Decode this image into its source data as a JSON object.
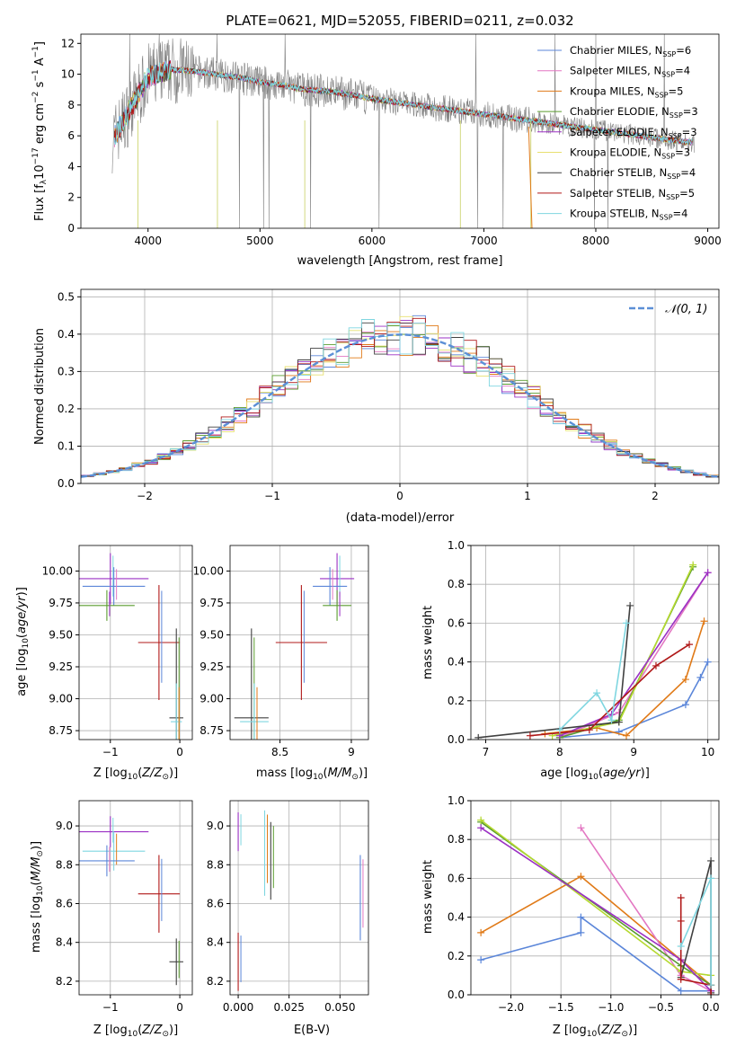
{
  "chart_data": [
    {
      "type": "line",
      "title": "PLATE=0621, MJD=52055, FIBERID=0211, z=0.032",
      "xlabel": "wavelength [Angstrom, rest frame]",
      "ylabel": "Flux [f_λ 10^-17 erg cm^-2 s^-1 A^-1]",
      "xlim": [
        3400,
        9100
      ],
      "ylim": [
        0,
        12.6
      ],
      "xticks": [
        4000,
        5000,
        6000,
        7000,
        8000,
        9000
      ],
      "yticks": [
        0,
        2,
        4,
        6,
        8,
        10,
        12
      ],
      "grid": false,
      "legend_position": "top-right",
      "legend": [
        "Chabrier MILES, N_SSP=6",
        "Salpeter MILES, N_SSP=4",
        "Kroupa MILES, N_SSP=5",
        "Chabrier ELODIE, N_SSP=3",
        "Salpeter ELODIE, N_SSP=3",
        "Kroupa ELODIE, N_SSP=3",
        "Chabrier STELIB, N_SSP=4",
        "Salpeter STELIB, N_SSP=5",
        "Kroupa STELIB, N_SSP=4"
      ],
      "data_trend": {
        "x": [
          3700,
          3800,
          3900,
          4000,
          4200,
          4400,
          4600,
          4800,
          5000,
          5200,
          5400,
          5600,
          5800,
          6000,
          6200,
          6400,
          6600,
          6800,
          7000,
          7200,
          7400,
          7600,
          7800,
          8000,
          8200,
          8400,
          8600,
          8800
        ],
        "y": [
          6.0,
          7.2,
          8.5,
          9.8,
          10.3,
          10.2,
          10.0,
          9.8,
          9.5,
          9.3,
          9.0,
          8.9,
          8.7,
          8.4,
          8.2,
          8.0,
          7.8,
          7.6,
          7.4,
          7.2,
          7.0,
          6.8,
          6.6,
          6.4,
          6.2,
          6.0,
          5.8,
          5.6
        ]
      }
    },
    {
      "type": "line",
      "xlabel": "(data-model)/error",
      "ylabel": "Normed distribution",
      "xlim": [
        -2.5,
        2.5
      ],
      "ylim": [
        0,
        0.52
      ],
      "xticks": [
        -2,
        -1,
        0,
        1,
        2
      ],
      "yticks": [
        0.0,
        0.1,
        0.2,
        0.3,
        0.4,
        0.5
      ],
      "grid": true,
      "legend": [
        "𝒩(0, 1)"
      ],
      "legend_position": "top-right"
    },
    {
      "type": "scatter",
      "xlabel": "Z [log10(Z/Z⊙)]",
      "ylabel": "age  [log10(age/yr)]",
      "xlim": [
        -1.45,
        0.18
      ],
      "ylim": [
        8.68,
        10.2
      ],
      "xticks": [
        -1,
        0
      ],
      "yticks": [
        8.75,
        9.0,
        9.25,
        9.5,
        9.75,
        10.0
      ],
      "grid": true,
      "points": [
        {
          "x": -1.0,
          "y": 9.94,
          "xerr": 0.55,
          "yerr": 0.2
        },
        {
          "x": -0.3,
          "y": 9.44,
          "xerr": 0.3,
          "yerr": 0.45
        },
        {
          "x": -0.05,
          "y": 8.85,
          "xerr": 0.1,
          "yerr": 0.7
        },
        {
          "x": -0.05,
          "y": 8.82,
          "xerr": 0.08,
          "yerr": 0.3
        },
        {
          "x": -0.95,
          "y": 9.88,
          "xerr": 0.45,
          "yerr": 0.15
        },
        {
          "x": -1.05,
          "y": 9.73,
          "xerr": 0.4,
          "yerr": 0.12
        }
      ]
    },
    {
      "type": "scatter",
      "xlabel": "mass [log10(M/M⊙)]",
      "ylabel": "",
      "xlim": [
        8.15,
        9.12
      ],
      "ylim": [
        8.68,
        10.2
      ],
      "xticks": [
        8.5,
        9.0
      ],
      "yticks": [
        8.75,
        9.0,
        9.25,
        9.5,
        9.75,
        10.0
      ],
      "grid": true,
      "points": [
        {
          "x": 8.9,
          "y": 9.94,
          "xerr": 0.12,
          "yerr": 0.2
        },
        {
          "x": 8.65,
          "y": 9.44,
          "xerr": 0.18,
          "yerr": 0.45
        },
        {
          "x": 8.3,
          "y": 8.85,
          "xerr": 0.12,
          "yerr": 0.7
        },
        {
          "x": 8.32,
          "y": 8.82,
          "xerr": 0.1,
          "yerr": 0.3
        },
        {
          "x": 8.85,
          "y": 9.88,
          "xerr": 0.12,
          "yerr": 0.15
        },
        {
          "x": 8.9,
          "y": 9.73,
          "xerr": 0.1,
          "yerr": 0.12
        }
      ]
    },
    {
      "type": "line",
      "xlabel": "age  [log10(age/yr)]",
      "ylabel": "mass weight",
      "xlim": [
        6.8,
        10.15
      ],
      "ylim": [
        0,
        1.0
      ],
      "xticks": [
        7,
        8,
        9,
        10
      ],
      "yticks": [
        0.0,
        0.2,
        0.4,
        0.6,
        0.8,
        1.0
      ],
      "grid": true,
      "series": [
        {
          "color": "#5b86d9",
          "x": [
            8.0,
            8.8,
            9.7,
            9.9,
            10.0
          ],
          "y": [
            0.01,
            0.04,
            0.18,
            0.32,
            0.4
          ]
        },
        {
          "color": "#e07a18",
          "x": [
            7.8,
            8.5,
            8.9,
            9.7,
            9.95
          ],
          "y": [
            0.03,
            0.06,
            0.02,
            0.31,
            0.61
          ]
        },
        {
          "color": "#e377c2",
          "x": [
            8.0,
            8.8,
            10.0
          ],
          "y": [
            0.01,
            0.14,
            0.86
          ]
        },
        {
          "color": "#5a9c2e",
          "x": [
            8.0,
            8.8,
            9.8
          ],
          "y": [
            0.01,
            0.1,
            0.89
          ]
        },
        {
          "color": "#b5d930",
          "x": [
            7.9,
            8.8,
            9.8
          ],
          "y": [
            0.02,
            0.09,
            0.9
          ]
        },
        {
          "color": "#9b30c4",
          "x": [
            8.0,
            8.7,
            10.0
          ],
          "y": [
            0.02,
            0.13,
            0.86
          ]
        },
        {
          "color": "#404040",
          "x": [
            6.9,
            8.8,
            8.95
          ],
          "y": [
            0.01,
            0.09,
            0.69
          ]
        },
        {
          "color": "#b01818",
          "x": [
            7.6,
            8.4,
            9.3,
            9.75
          ],
          "y": [
            0.02,
            0.05,
            0.38,
            0.49
          ]
        },
        {
          "color": "#7fd6e0",
          "x": [
            8.0,
            8.5,
            8.7,
            8.9
          ],
          "y": [
            0.05,
            0.24,
            0.1,
            0.6
          ]
        }
      ]
    },
    {
      "type": "scatter",
      "xlabel": "Z [log10(Z/Z⊙)]",
      "ylabel": "mass [log10(M/M⊙)]",
      "xlim": [
        -1.45,
        0.18
      ],
      "ylim": [
        8.13,
        9.13
      ],
      "xticks": [
        -1,
        0
      ],
      "yticks": [
        8.2,
        8.4,
        8.6,
        8.8,
        9.0
      ],
      "grid": true,
      "points": [
        {
          "x": -1.0,
          "y": 8.97,
          "xerr": 0.55,
          "yerr": 0.08
        },
        {
          "x": -0.3,
          "y": 8.65,
          "xerr": 0.3,
          "yerr": 0.2
        },
        {
          "x": -0.05,
          "y": 8.3,
          "xerr": 0.1,
          "yerr": 0.12
        },
        {
          "x": -0.95,
          "y": 8.87,
          "xerr": 0.45,
          "yerr": 0.1
        },
        {
          "x": -1.05,
          "y": 8.82,
          "xerr": 0.4,
          "yerr": 0.08
        }
      ]
    },
    {
      "type": "scatter",
      "xlabel": "E(B-V)",
      "ylabel": "",
      "xlim": [
        -0.004,
        0.064
      ],
      "ylim": [
        8.13,
        9.13
      ],
      "xticks": [
        0.0,
        0.025,
        0.05
      ],
      "xtick_labels": [
        "0.000",
        "0.025",
        "0.050"
      ],
      "yticks": [
        8.2,
        8.4,
        8.6,
        8.8,
        9.0
      ],
      "grid": true,
      "points": [
        {
          "x": 0.0,
          "y": 8.97,
          "yerr": 0.1
        },
        {
          "x": 0.0,
          "y": 8.3,
          "yerr": 0.15
        },
        {
          "x": 0.016,
          "y": 8.82,
          "yerr": 0.2
        },
        {
          "x": 0.013,
          "y": 8.86,
          "yerr": 0.22
        },
        {
          "x": 0.06,
          "y": 8.63,
          "yerr": 0.22
        }
      ]
    },
    {
      "type": "line",
      "xlabel": "Z [log10(Z/Z⊙)]",
      "ylabel": "mass weight",
      "xlim": [
        -2.4,
        0.08
      ],
      "ylim": [
        0,
        1.0
      ],
      "xticks": [
        -2.0,
        -1.5,
        -1.0,
        -0.5,
        0.0
      ],
      "xtick_labels": [
        "−2.0",
        "−1.5",
        "−1.0",
        "−0.5",
        "0.0"
      ],
      "yticks": [
        0.0,
        0.2,
        0.4,
        0.6,
        0.8,
        1.0
      ],
      "grid": true,
      "series": [
        {
          "color": "#5b86d9",
          "x": [
            -2.3,
            -1.3,
            -1.3,
            -0.3,
            0.0
          ],
          "y": [
            0.18,
            0.32,
            0.4,
            0.02,
            0.02
          ]
        },
        {
          "color": "#e07a18",
          "x": [
            -2.3,
            -1.3,
            -0.3,
            0.0
          ],
          "y": [
            0.32,
            0.61,
            0.18,
            0.05
          ]
        },
        {
          "color": "#e377c2",
          "x": [
            -1.3,
            -0.3,
            0.0
          ],
          "y": [
            0.86,
            0.1,
            0.02
          ]
        },
        {
          "color": "#5a9c2e",
          "x": [
            -2.3,
            -0.3,
            0.0
          ],
          "y": [
            0.89,
            0.15,
            0.05
          ]
        },
        {
          "color": "#b5d930",
          "x": [
            -2.3,
            -0.3,
            0.0
          ],
          "y": [
            0.9,
            0.12,
            0.1
          ]
        },
        {
          "color": "#9b30c4",
          "x": [
            -2.3,
            -0.3,
            0.0
          ],
          "y": [
            0.86,
            0.18,
            0.02
          ]
        },
        {
          "color": "#404040",
          "x": [
            -0.3,
            0.0,
            0.0
          ],
          "y": [
            0.09,
            0.69,
            0.01
          ]
        },
        {
          "color": "#b01818",
          "x": [
            -0.3,
            -0.3,
            -0.3,
            0.0,
            0.0
          ],
          "y": [
            0.5,
            0.38,
            0.08,
            0.05,
            0.0
          ]
        },
        {
          "color": "#7fd6e0",
          "x": [
            -0.3,
            0.0,
            0.0
          ],
          "y": [
            0.25,
            0.6,
            0.05
          ]
        }
      ]
    }
  ],
  "colors": {
    "chabrier_miles": "#5b86d9",
    "salpeter_miles": "#e377c2",
    "kroupa_miles": "#e07a18",
    "chabrier_elodie": "#5a9c2e",
    "salpeter_elodie": "#9b30c4",
    "kroupa_elodie": "#e8e070",
    "chabrier_stelib": "#404040",
    "salpeter_stelib": "#b01818",
    "kroupa_stelib": "#7fd6e0",
    "data": "#808080",
    "normal": "#5b8fd6"
  }
}
